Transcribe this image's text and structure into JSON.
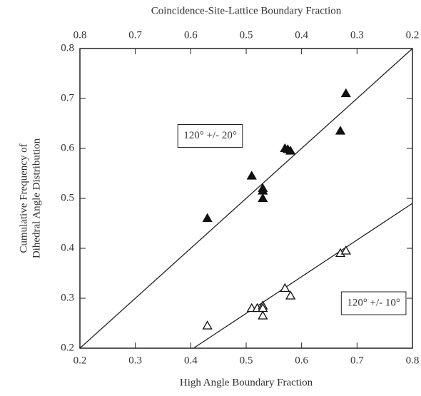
{
  "chart_data": {
    "type": "scatter",
    "xlabel": "High Angle Boundary Fraction",
    "x2label": "Coincidence-Site-Lattice Boundary Fraction",
    "ylabel": [
      "Cumulative Frequency of",
      "Dihedral Angle Distribution"
    ],
    "xlim": [
      0.2,
      0.8
    ],
    "xticks": [
      0.2,
      0.3,
      0.4,
      0.5,
      0.6,
      0.7,
      0.8
    ],
    "x2lim": [
      0.8,
      0.2
    ],
    "x2ticks": [
      0.8,
      0.7,
      0.6,
      0.5,
      0.4,
      0.3,
      0.2
    ],
    "ylim": [
      0.2,
      0.8
    ],
    "yticks": [
      0.2,
      0.3,
      0.4,
      0.5,
      0.6,
      0.7,
      0.8
    ],
    "series": [
      {
        "color": "#111111",
        "filled": true,
        "x": [
          0.43,
          0.51,
          0.53,
          0.53,
          0.53,
          0.57,
          0.575,
          0.58,
          0.67,
          0.68
        ],
        "values": [
          0.46,
          0.545,
          0.52,
          0.515,
          0.5,
          0.6,
          0.598,
          0.595,
          0.635,
          0.71
        ]
      },
      {
        "color": "#111111",
        "filled": false,
        "x": [
          0.43,
          0.51,
          0.52,
          0.53,
          0.53,
          0.53,
          0.57,
          0.58,
          0.67,
          0.68
        ],
        "values": [
          0.245,
          0.28,
          0.28,
          0.285,
          0.28,
          0.265,
          0.32,
          0.305,
          0.39,
          0.395
        ]
      }
    ],
    "fit_lines": [
      {
        "x": [
          0.2,
          0.8
        ],
        "values": [
          0.2,
          0.8
        ]
      },
      {
        "x": [
          0.405,
          0.8
        ],
        "values": [
          0.2,
          0.49
        ]
      }
    ],
    "annotations": [
      {
        "text": "120° +/- 20°",
        "x": 0.435,
        "y": 0.625
      },
      {
        "text": "120° +/- 10°",
        "x": 0.73,
        "y": 0.29
      }
    ]
  }
}
